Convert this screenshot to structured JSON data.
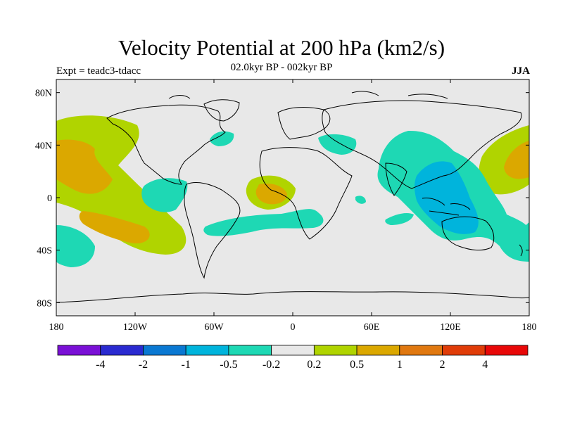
{
  "title": "Velocity Potential at 200 hPa (km2/s)",
  "subtitle": "02.0kyr BP - 002kyr BP",
  "experiment_label": "Expt = teadc3-tdacc",
  "season": "JJA",
  "chart_data": {
    "type": "heatmap",
    "projection": "cylindrical-equidistant",
    "lon_range": [
      -180,
      180
    ],
    "lat_range": [
      -90,
      90
    ],
    "x_ticks": [
      {
        "value": -180,
        "label": "180"
      },
      {
        "value": -120,
        "label": "120W"
      },
      {
        "value": -60,
        "label": "60W"
      },
      {
        "value": 0,
        "label": "0"
      },
      {
        "value": 60,
        "label": "60E"
      },
      {
        "value": 120,
        "label": "120E"
      },
      {
        "value": 180,
        "label": "180"
      }
    ],
    "y_ticks": [
      {
        "value": 80,
        "label": "80N"
      },
      {
        "value": 40,
        "label": "40N"
      },
      {
        "value": 0,
        "label": "0"
      },
      {
        "value": -40,
        "label": "40S"
      },
      {
        "value": -80,
        "label": "80S"
      }
    ],
    "colorbar": {
      "levels": [
        "-4",
        "-2",
        "-1",
        "-0.5",
        "-0.2",
        "0.2",
        "0.5",
        "1",
        "2",
        "4"
      ],
      "colors": [
        "#7a10d6",
        "#2a2ad0",
        "#0a78d2",
        "#00b4dc",
        "#1ed8b4",
        "#e8e8e8",
        "#b0d400",
        "#dba800",
        "#e07810",
        "#e03c08",
        "#e80808"
      ]
    },
    "regions": [
      {
        "name": "north-pacific-positive",
        "level": "0.2 to 0.5",
        "color": "#b0d400"
      },
      {
        "name": "north-pacific-core",
        "level": "0.5 to 1",
        "color": "#dba800"
      },
      {
        "name": "south-pacific-core",
        "level": "0.5 to 1",
        "color": "#dba800"
      },
      {
        "name": "west-pacific-positive",
        "level": "0.2 to 0.5",
        "color": "#b0d400"
      },
      {
        "name": "west-pacific-core",
        "level": "0.5 to 1",
        "color": "#dba800"
      },
      {
        "name": "tropical-atlantic-positive",
        "level": "0.2 to 0.5",
        "color": "#b0d400"
      },
      {
        "name": "tropical-atlantic-core",
        "level": "0.5 to 1",
        "color": "#dba800"
      },
      {
        "name": "indo-pacific-negative",
        "level": "-0.5 to -0.2",
        "color": "#1ed8b4"
      },
      {
        "name": "maritime-continent-core",
        "level": "-1 to -0.5",
        "color": "#00b4dc"
      },
      {
        "name": "south-atlantic-negative",
        "level": "-0.5 to -0.2",
        "color": "#1ed8b4"
      },
      {
        "name": "south-pacific-negative",
        "level": "-0.5 to -0.2",
        "color": "#1ed8b4"
      }
    ]
  }
}
